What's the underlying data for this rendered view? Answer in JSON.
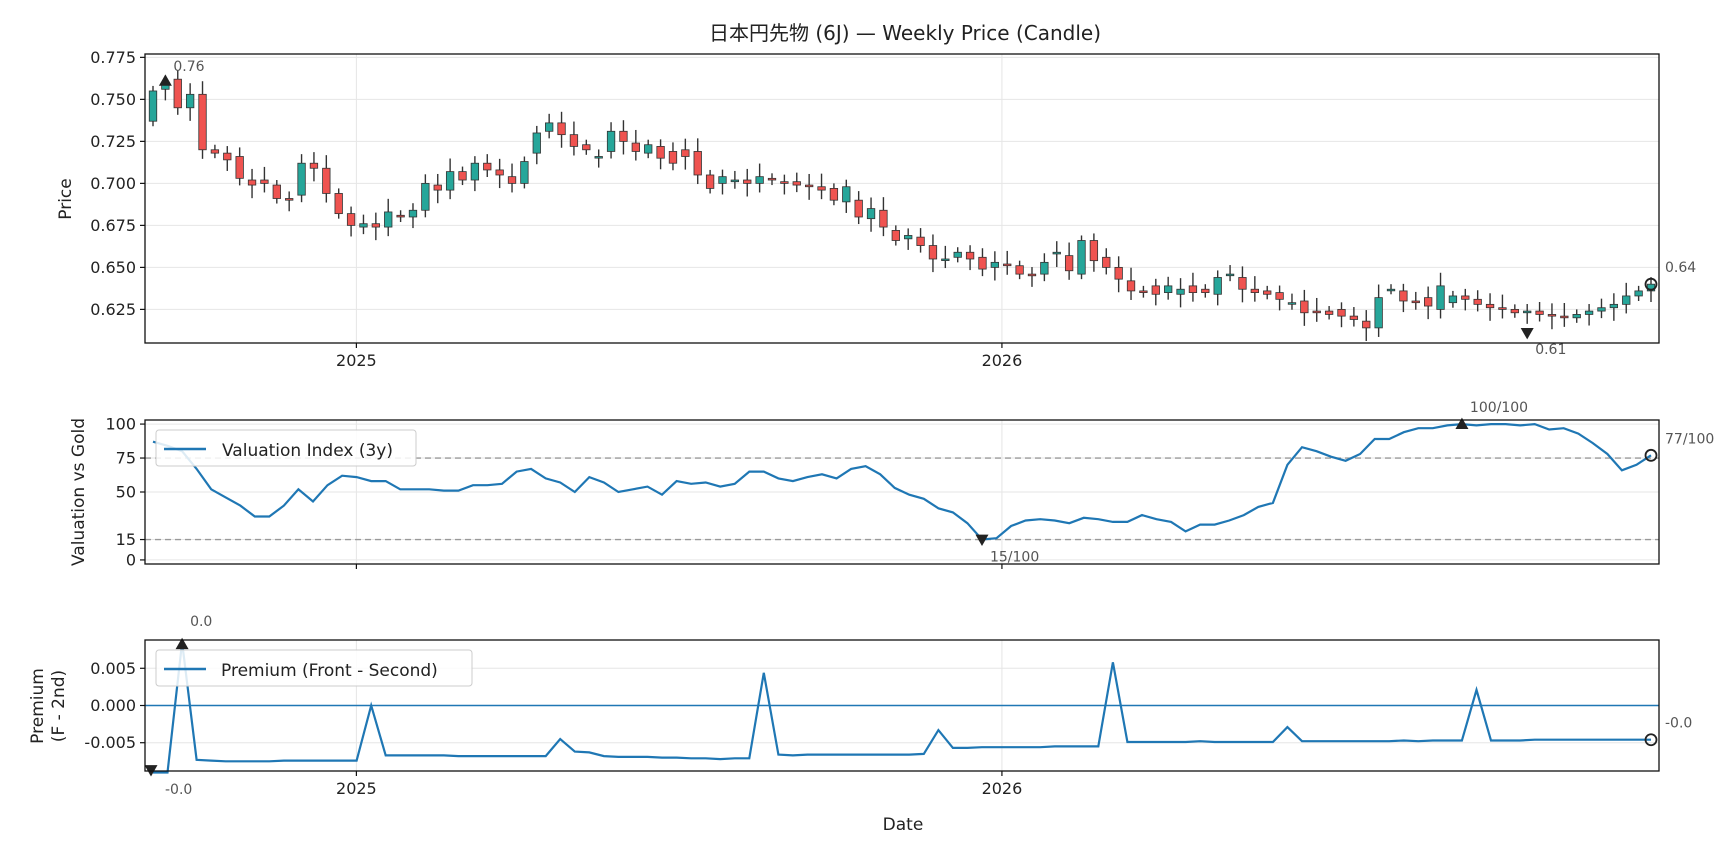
{
  "colors": {
    "up": "#26a69a",
    "down": "#ef5350",
    "wick": "#333333",
    "line": "#1f77b4",
    "ref": "#999999",
    "grid": "#e6e6e6"
  },
  "chart_data": [
    {
      "type": "candlestick",
      "title": "日本円先物 (6J) — Weekly Price (Candle)",
      "ylabel": "Price",
      "ylim": [
        0.605,
        0.777
      ],
      "yticks": [
        "0.625",
        "0.650",
        "0.675",
        "0.700",
        "0.725",
        "0.750",
        "0.775"
      ],
      "xticks": [
        "2025",
        "2026"
      ],
      "n_weeks": 122,
      "x_start": "2024-09-08",
      "grid": true,
      "annotations": {
        "max_label": "0.76",
        "min_label": "0.61",
        "last_label": "0.64"
      },
      "candles": [
        [
          0.737,
          0.755
        ],
        [
          0.756,
          0.76
        ],
        [
          0.762,
          0.745
        ],
        [
          0.745,
          0.753
        ],
        [
          0.753,
          0.72
        ],
        [
          0.72,
          0.718
        ],
        [
          0.718,
          0.714
        ],
        [
          0.716,
          0.703
        ],
        [
          0.702,
          0.699
        ],
        [
          0.702,
          0.7
        ],
        [
          0.699,
          0.691
        ],
        [
          0.691,
          0.69
        ],
        [
          0.693,
          0.712
        ],
        [
          0.712,
          0.709
        ],
        [
          0.709,
          0.694
        ],
        [
          0.694,
          0.682
        ],
        [
          0.682,
          0.675
        ],
        [
          0.674,
          0.676
        ],
        [
          0.676,
          0.674
        ],
        [
          0.674,
          0.683
        ],
        [
          0.681,
          0.68
        ],
        [
          0.68,
          0.684
        ],
        [
          0.684,
          0.7
        ],
        [
          0.699,
          0.696
        ],
        [
          0.696,
          0.707
        ],
        [
          0.707,
          0.702
        ],
        [
          0.702,
          0.712
        ],
        [
          0.712,
          0.708
        ],
        [
          0.708,
          0.705
        ],
        [
          0.704,
          0.7
        ],
        [
          0.7,
          0.713
        ],
        [
          0.718,
          0.73
        ],
        [
          0.731,
          0.736
        ],
        [
          0.736,
          0.729
        ],
        [
          0.729,
          0.722
        ],
        [
          0.723,
          0.72
        ],
        [
          0.716,
          0.716
        ],
        [
          0.719,
          0.731
        ],
        [
          0.731,
          0.725
        ],
        [
          0.724,
          0.719
        ],
        [
          0.718,
          0.723
        ],
        [
          0.722,
          0.715
        ],
        [
          0.719,
          0.712
        ],
        [
          0.72,
          0.716
        ],
        [
          0.719,
          0.705
        ],
        [
          0.705,
          0.697
        ],
        [
          0.7,
          0.704
        ],
        [
          0.701,
          0.702
        ],
        [
          0.702,
          0.7
        ],
        [
          0.7,
          0.704
        ],
        [
          0.703,
          0.702
        ],
        [
          0.701,
          0.7
        ],
        [
          0.701,
          0.699
        ],
        [
          0.699,
          0.698
        ],
        [
          0.698,
          0.696
        ],
        [
          0.697,
          0.69
        ],
        [
          0.689,
          0.698
        ],
        [
          0.69,
          0.68
        ],
        [
          0.679,
          0.685
        ],
        [
          0.684,
          0.674
        ],
        [
          0.672,
          0.666
        ],
        [
          0.667,
          0.669
        ],
        [
          0.668,
          0.663
        ],
        [
          0.663,
          0.655
        ],
        [
          0.655,
          0.655
        ],
        [
          0.656,
          0.659
        ],
        [
          0.659,
          0.655
        ],
        [
          0.656,
          0.649
        ],
        [
          0.65,
          0.653
        ],
        [
          0.652,
          0.651
        ],
        [
          0.651,
          0.646
        ],
        [
          0.646,
          0.645
        ],
        [
          0.646,
          0.653
        ],
        [
          0.658,
          0.659
        ],
        [
          0.657,
          0.648
        ],
        [
          0.646,
          0.666
        ],
        [
          0.666,
          0.654
        ],
        [
          0.656,
          0.65
        ],
        [
          0.65,
          0.643
        ],
        [
          0.642,
          0.636
        ],
        [
          0.636,
          0.635
        ],
        [
          0.639,
          0.634
        ],
        [
          0.635,
          0.639
        ],
        [
          0.634,
          0.637
        ],
        [
          0.639,
          0.635
        ],
        [
          0.637,
          0.635
        ],
        [
          0.634,
          0.644
        ],
        [
          0.646,
          0.646
        ],
        [
          0.644,
          0.637
        ],
        [
          0.637,
          0.635
        ],
        [
          0.636,
          0.634
        ],
        [
          0.635,
          0.631
        ],
        [
          0.629,
          0.629
        ],
        [
          0.63,
          0.623
        ],
        [
          0.624,
          0.623
        ],
        [
          0.624,
          0.622
        ],
        [
          0.625,
          0.621
        ],
        [
          0.621,
          0.619
        ],
        [
          0.618,
          0.614
        ],
        [
          0.614,
          0.632
        ],
        [
          0.637,
          0.637
        ],
        [
          0.636,
          0.63
        ],
        [
          0.63,
          0.629
        ],
        [
          0.632,
          0.627
        ],
        [
          0.625,
          0.639
        ],
        [
          0.629,
          0.633
        ],
        [
          0.633,
          0.631
        ],
        [
          0.631,
          0.628
        ],
        [
          0.628,
          0.626
        ],
        [
          0.626,
          0.625
        ],
        [
          0.625,
          0.623
        ],
        [
          0.623,
          0.624
        ],
        [
          0.624,
          0.622
        ],
        [
          0.622,
          0.621
        ],
        [
          0.621,
          0.62
        ],
        [
          0.62,
          0.622
        ],
        [
          0.622,
          0.624
        ],
        [
          0.624,
          0.626
        ],
        [
          0.626,
          0.628
        ],
        [
          0.628,
          0.633
        ],
        [
          0.633,
          0.636
        ],
        [
          0.636,
          0.64
        ]
      ]
    },
    {
      "type": "line",
      "ylabel": "Valuation vs Gold",
      "ylim": [
        -3,
        103
      ],
      "yticks": [
        "0",
        "15",
        "50",
        "75",
        "100"
      ],
      "reference_lines": [
        15,
        75
      ],
      "series": [
        {
          "name": "Valuation Index (3y)",
          "values": [
            87,
            84,
            80,
            67,
            52,
            46,
            40,
            32,
            32,
            40,
            52,
            43,
            55,
            62,
            61,
            58,
            58,
            52,
            52,
            52,
            51,
            51,
            55,
            55,
            56,
            65,
            67,
            60,
            57,
            50,
            61,
            57,
            50,
            52,
            54,
            48,
            58,
            56,
            57,
            54,
            56,
            65,
            65,
            60,
            58,
            61,
            63,
            60,
            67,
            69,
            63,
            53,
            48,
            45,
            38,
            35,
            27,
            15,
            16,
            25,
            29,
            30,
            29,
            27,
            31,
            30,
            28,
            28,
            33,
            30,
            28,
            21,
            26,
            26,
            29,
            33,
            39,
            42,
            70,
            83,
            80,
            76,
            73,
            78,
            89,
            89,
            94,
            97,
            97,
            99,
            100,
            99,
            100,
            100,
            99,
            100,
            96,
            97,
            93,
            86,
            78,
            66,
            70,
            77
          ]
        }
      ],
      "annotations": {
        "max_label": "100/100",
        "min_label": "15/100",
        "last_label": "77/100"
      }
    },
    {
      "type": "line",
      "ylabel": "Premium\n(F - 2nd)",
      "xlabel": "Date",
      "ylim": [
        -0.0088,
        0.0088
      ],
      "yticks": [
        "-0.005",
        "0.000",
        "0.005"
      ],
      "xticks": [
        "2025",
        "2026"
      ],
      "zero_line": true,
      "series": [
        {
          "name": "Premium (Front - Second)",
          "values": [
            -0.009,
            -0.009,
            0.0085,
            -0.0073,
            -0.0074,
            -0.0075,
            -0.0075,
            -0.0075,
            -0.0075,
            -0.0074,
            -0.0074,
            -0.0074,
            -0.0074,
            -0.0074,
            -0.0074,
            0.0,
            -0.0067,
            -0.0067,
            -0.0067,
            -0.0067,
            -0.0067,
            -0.0068,
            -0.0068,
            -0.0068,
            -0.0068,
            -0.0068,
            -0.0068,
            -0.0068,
            -0.0045,
            -0.0062,
            -0.0063,
            -0.0068,
            -0.0069,
            -0.0069,
            -0.0069,
            -0.007,
            -0.007,
            -0.0071,
            -0.0071,
            -0.0072,
            -0.0071,
            -0.0071,
            0.0044,
            -0.0066,
            -0.0067,
            -0.0066,
            -0.0066,
            -0.0066,
            -0.0066,
            -0.0066,
            -0.0066,
            -0.0066,
            -0.0066,
            -0.0065,
            -0.0033,
            -0.0057,
            -0.0057,
            -0.0056,
            -0.0056,
            -0.0056,
            -0.0056,
            -0.0056,
            -0.0055,
            -0.0055,
            -0.0055,
            -0.0055,
            0.0058,
            -0.0049,
            -0.0049,
            -0.0049,
            -0.0049,
            -0.0049,
            -0.0048,
            -0.0049,
            -0.0049,
            -0.0049,
            -0.0049,
            -0.0049,
            -0.0029,
            -0.0048,
            -0.0048,
            -0.0048,
            -0.0048,
            -0.0048,
            -0.0048,
            -0.0048,
            -0.0047,
            -0.0048,
            -0.0047,
            -0.0047,
            -0.0047,
            0.0021,
            -0.0047,
            -0.0047,
            -0.0047,
            -0.0046,
            -0.0046,
            -0.0046,
            -0.0046,
            -0.0046,
            -0.0046,
            -0.0046,
            -0.0046,
            -0.0046
          ]
        }
      ],
      "annotations": {
        "max_label": "0.0",
        "min_label": "-0.0",
        "last_label": "-0.0"
      }
    }
  ]
}
